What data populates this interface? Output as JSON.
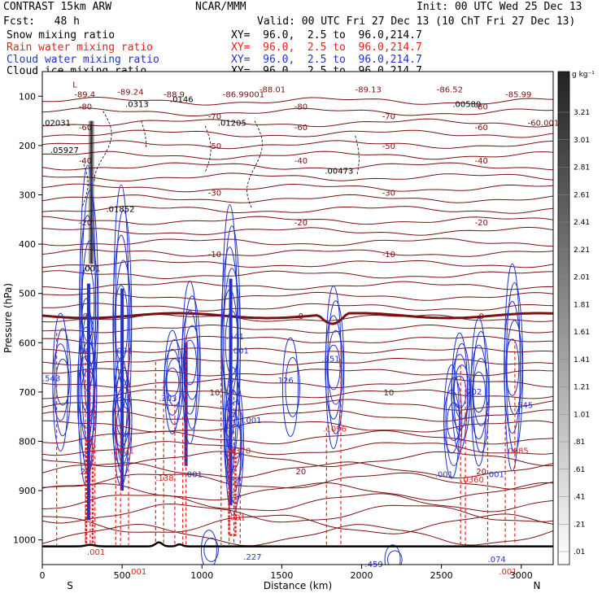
{
  "header": {
    "line1_left": "CONTRAST 15km ARW",
    "line1_mid": "NCAR/MMM",
    "line1_right": "Init: 00 UTC Wed 25 Dec 13",
    "line2_left": "Fcst:   48 h",
    "line2_right": "Valid: 00 UTC Fri 27 Dec 13 (10 ChT Fri 27 Dec 13)"
  },
  "legend": [
    {
      "label": "Snow mixing ratio",
      "color": "#000000",
      "xy": "XY=  96.0,  2.5 to  96.0,214.7"
    },
    {
      "label": "Rain water mixing ratio",
      "color": "#e8201c",
      "xy": "XY=  96.0,  2.5 to  96.0,214.7"
    },
    {
      "label": "Cloud water mixing ratio",
      "color": "#2233cc",
      "xy": "XY=  96.0,  2.5 to  96.0,214.7"
    },
    {
      "label": "Cloud ice mixing ratio",
      "color": "#000000",
      "xy": "XY=  96.0,  2.5 to  96.0,214.7"
    }
  ],
  "chart_data": {
    "type": "contour-cross-section",
    "xlabel": "Distance (km)",
    "ylabel": "Pressure (hPa)",
    "xlim": [
      0,
      3200
    ],
    "ylim": [
      1050,
      50
    ],
    "x_ticks": [
      0,
      500,
      1000,
      1500,
      2000,
      2500,
      3000
    ],
    "y_ticks": [
      100,
      200,
      300,
      400,
      500,
      600,
      700,
      800,
      900,
      1000
    ],
    "x_end_labels": {
      "left": "S",
      "right": "N"
    },
    "colorbar": {
      "unit": "g kg⁻¹",
      "ticks": [
        "3.21",
        "3.01",
        "2.81",
        "2.61",
        "2.41",
        "2.21",
        "2.01",
        "1.81",
        "1.61",
        "1.41",
        "1.21",
        "1.01",
        ".81",
        ".61",
        ".41",
        ".21",
        ".01"
      ]
    },
    "temperature_contours": [
      {
        "label": "-80",
        "pressure": 120
      },
      {
        "label": "-70",
        "pressure": 140
      },
      {
        "label": "-60",
        "pressure": 162
      },
      {
        "label": "-50",
        "pressure": 200
      },
      {
        "label": "-40",
        "pressure": 230
      },
      {
        "label": "-30",
        "pressure": 295
      },
      {
        "label": "-20",
        "pressure": 355
      },
      {
        "label": "-10",
        "pressure": 420
      },
      {
        "label": "0",
        "pressure": 545
      },
      {
        "label": "10",
        "pressure": 700
      },
      {
        "label": "20",
        "pressure": 860
      }
    ],
    "annotations": [
      {
        "text": "L",
        "x": 190,
        "p": 82,
        "color": "#7a1010"
      },
      {
        "text": "-89.4",
        "x": 200,
        "p": 102,
        "color": "#7a1010"
      },
      {
        "text": "-89.24",
        "x": 470,
        "p": 97,
        "color": "#7a1010"
      },
      {
        "text": "-88.9",
        "x": 760,
        "p": 102,
        "color": "#7a1010"
      },
      {
        "text": "-86.99001",
        "x": 1130,
        "p": 102,
        "color": "#7a1010"
      },
      {
        "text": "-88.01",
        "x": 1360,
        "p": 92,
        "color": "#7a1010"
      },
      {
        "text": "-89.13",
        "x": 1960,
        "p": 92,
        "color": "#7a1010"
      },
      {
        "text": "-86.52",
        "x": 2470,
        "p": 92,
        "color": "#7a1010"
      },
      {
        "text": "-85.99",
        "x": 2900,
        "p": 102,
        "color": "#7a1010"
      },
      {
        "text": ".0313",
        "x": 520,
        "p": 122,
        "color": "#000000"
      },
      {
        "text": ".0146",
        "x": 800,
        "p": 112,
        "color": "#000000"
      },
      {
        "text": ".00580",
        "x": 2570,
        "p": 122,
        "color": "#000000"
      },
      {
        "text": ".02031",
        "x": 0,
        "p": 160,
        "color": "#000000"
      },
      {
        "text": ".01205",
        "x": 1100,
        "p": 160,
        "color": "#000000"
      },
      {
        "text": ".05927",
        "x": 50,
        "p": 215,
        "color": "#000000"
      },
      {
        "text": ".00473",
        "x": 1770,
        "p": 257,
        "color": "#000000"
      },
      {
        "text": ".01852",
        "x": 400,
        "p": 335,
        "color": "#000000"
      },
      {
        "text": ".001",
        "x": 250,
        "p": 455,
        "color": "#000000"
      },
      {
        "text": "-60.001",
        "x": 3040,
        "p": 160,
        "color": "#7a1010"
      },
      {
        "text": ".543",
        "x": 0,
        "p": 678,
        "color": "#2233cc"
      },
      {
        "text": ".001",
        "x": 220,
        "p": 622,
        "color": "#2233cc"
      },
      {
        "text": ".001",
        "x": 450,
        "p": 622,
        "color": "#2233cc"
      },
      {
        "text": ".641",
        "x": 1150,
        "p": 593,
        "color": "#2233cc"
      },
      {
        "text": ".001",
        "x": 1180,
        "p": 622,
        "color": "#2233cc"
      },
      {
        "text": ".651",
        "x": 1750,
        "p": 638,
        "color": "#2233cc"
      },
      {
        "text": ".126",
        "x": 1460,
        "p": 682,
        "color": "#2233cc"
      },
      {
        "text": ".702",
        "x": 2640,
        "p": 705,
        "color": "#2233cc"
      },
      {
        "text": ".303",
        "x": 730,
        "p": 718,
        "color": "#2233cc"
      },
      {
        "text": ".001",
        "x": 1260,
        "p": 763,
        "color": "#2233cc"
      },
      {
        "text": ".1096",
        "x": 1760,
        "p": 780,
        "color": "#e8201c"
      },
      {
        "text": ".2621",
        "x": 430,
        "p": 825,
        "color": "#e8201c"
      },
      {
        "text": ".1370",
        "x": 1160,
        "p": 825,
        "color": "#e8201c"
      },
      {
        "text": ".0085",
        "x": 2900,
        "p": 825,
        "color": "#e8201c"
      },
      {
        "text": ".138",
        "x": 710,
        "p": 880,
        "color": "#e8201c"
      },
      {
        "text": ".001",
        "x": 890,
        "p": 873,
        "color": "#2233cc"
      },
      {
        "text": ".001",
        "x": 2460,
        "p": 873,
        "color": "#2233cc"
      },
      {
        "text": ".0360",
        "x": 2620,
        "p": 883,
        "color": "#e8201c"
      },
      {
        "text": ".001",
        "x": 2780,
        "p": 873,
        "color": "#2233cc"
      },
      {
        "text": ".545",
        "x": 2960,
        "p": 732,
        "color": "#2233cc"
      },
      {
        "text": ".227",
        "x": 1260,
        "p": 1040,
        "color": "#2233cc"
      },
      {
        "text": ".459",
        "x": 2020,
        "p": 1055,
        "color": "#2233cc"
      },
      {
        "text": ".074",
        "x": 2790,
        "p": 1045,
        "color": "#2233cc"
      },
      {
        "text": ".001",
        "x": 1160,
        "p": 960,
        "color": "#e8201c"
      },
      {
        "text": ".001",
        "x": 280,
        "p": 1030,
        "color": "#e8201c"
      },
      {
        "text": ".001",
        "x": 540,
        "p": 1070,
        "color": "#e8201c"
      },
      {
        "text": ".001",
        "x": 2860,
        "p": 1070,
        "color": "#e8201c"
      }
    ]
  },
  "colors": {
    "temperature": "#7a1010",
    "freezing": "#7a1010",
    "rain": "#e8201c",
    "cloud_water": "#2233cc",
    "ice": "#000000",
    "terrain": "#000000"
  }
}
